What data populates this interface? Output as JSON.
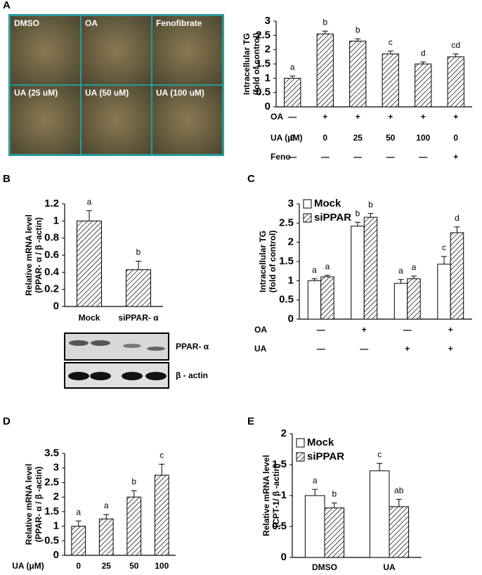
{
  "chart_data": [
    {
      "type": "bar",
      "panel": "A",
      "images": [
        "DMSO",
        "OA",
        "Fenofibrate",
        "UA (25 uM)",
        "UA (50 uM)",
        "UA (100 uM)"
      ],
      "ylabel": [
        "Intracellular TG",
        "(fold of control)"
      ],
      "values": [
        1,
        2.55,
        2.3,
        1.85,
        1.5,
        1.75
      ],
      "errors": [
        0.08,
        0.1,
        0.08,
        0.1,
        0.07,
        0.1
      ],
      "annotations": [
        "a",
        "b",
        "b",
        "c",
        "d",
        "cd"
      ],
      "fill": "hatch",
      "color": "#000000",
      "ylim": [
        0,
        3
      ],
      "yticks": [
        0,
        0.5,
        1,
        1.5,
        2,
        2.5,
        3
      ],
      "conditions": [
        {
          "label": "OA",
          "marks": [
            "—",
            "+",
            "+",
            "+",
            "+",
            "+"
          ]
        },
        {
          "label": "UA (μM)",
          "marks": [
            0,
            0,
            25,
            50,
            100,
            0
          ]
        },
        {
          "label": "Feno",
          "marks": [
            "—",
            "—",
            "—",
            "—",
            "—",
            "+"
          ]
        }
      ]
    },
    {
      "type": "bar",
      "panel": "B",
      "ylabel": [
        "Relative mRNA level",
        "(PPAR- α / β -actin)"
      ],
      "categories": [
        "Mock",
        "siPPAR- α"
      ],
      "values": [
        1,
        0.43
      ],
      "errors": [
        0.12,
        0.1
      ],
      "annotations": [
        "a",
        "b"
      ],
      "fill": "hatch",
      "color": "#000000",
      "ylim": [
        0,
        1.2
      ],
      "yticks": [
        0,
        0.2,
        0.4,
        0.6,
        0.8,
        1,
        1.2
      ],
      "blot_labels": [
        "PPAR- α",
        "β - actin"
      ]
    },
    {
      "type": "grouped-bar",
      "panel": "C",
      "ylabel": [
        "Intracellular TG",
        "(fold of control)"
      ],
      "series": [
        {
          "name": "Mock",
          "color": "#ffffff",
          "fill": "solid",
          "values": [
            1,
            2.42,
            0.93,
            1.43
          ],
          "errors": [
            0.05,
            0.1,
            0.1,
            0.2
          ],
          "annotations": [
            "a",
            "b",
            "a",
            "c"
          ]
        },
        {
          "name": "siPPAR",
          "color": "#000000",
          "fill": "hatch",
          "values": [
            1.1,
            2.65,
            1.05,
            2.25
          ],
          "errors": [
            0.04,
            0.1,
            0.07,
            0.15
          ],
          "annotations": [
            "a",
            "b",
            "a",
            "d"
          ]
        }
      ],
      "ylim": [
        0,
        3
      ],
      "yticks": [
        0,
        0.5,
        1,
        1.5,
        2,
        2.5,
        3
      ],
      "legend": "top-left",
      "conditions": [
        {
          "label": "OA",
          "marks": [
            "—",
            "+",
            "—",
            "+"
          ]
        },
        {
          "label": "UA",
          "marks": [
            "—",
            "—",
            "+",
            "+"
          ]
        }
      ]
    },
    {
      "type": "bar",
      "panel": "D",
      "ylabel": [
        "Relative mRNA level",
        "(PPAR- α / β -actin)"
      ],
      "xlabel": "UA (μM)",
      "categories": [
        0,
        25,
        50,
        100
      ],
      "values": [
        1,
        1.25,
        2,
        2.75
      ],
      "errors": [
        0.18,
        0.15,
        0.22,
        0.38
      ],
      "annotations": [
        "a",
        "a",
        "b",
        "c"
      ],
      "fill": "hatch",
      "color": "#000000",
      "ylim": [
        0,
        3.5
      ],
      "yticks": [
        0,
        0.5,
        1,
        1.5,
        2,
        2.5,
        3,
        3.5
      ]
    },
    {
      "type": "grouped-bar",
      "panel": "E",
      "ylabel": [
        "Relative mRNA level",
        "(CPT-1/ β -actin)"
      ],
      "categories": [
        "DMSO",
        "UA"
      ],
      "series": [
        {
          "name": "Mock",
          "color": "#ffffff",
          "fill": "solid",
          "values": [
            1,
            1.4
          ],
          "errors": [
            0.1,
            0.12
          ],
          "annotations": [
            "a",
            "c"
          ]
        },
        {
          "name": "siPPAR",
          "color": "#000000",
          "fill": "hatch",
          "values": [
            0.8,
            0.82
          ],
          "errors": [
            0.08,
            0.12
          ],
          "annotations": [
            "b",
            "ab"
          ]
        }
      ],
      "ylim": [
        0,
        2
      ],
      "yticks": [
        0,
        0.5,
        1,
        1.5,
        2
      ],
      "legend": "top-left"
    }
  ]
}
